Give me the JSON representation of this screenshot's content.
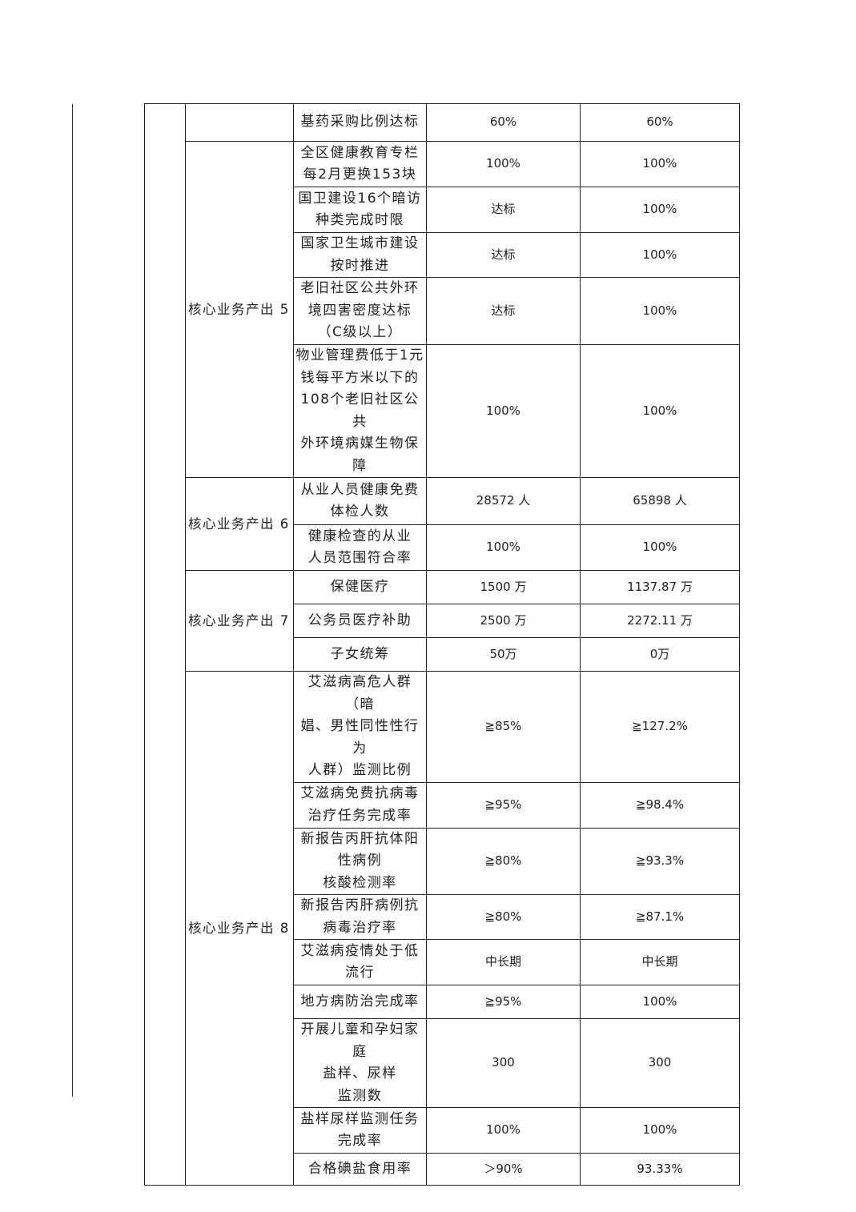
{
  "groups": [
    {
      "label": "",
      "rows": [
        0
      ]
    },
    {
      "label": "核心业务产出 5",
      "rows": [
        1,
        2,
        3,
        4,
        5
      ]
    },
    {
      "label": "核心业务产出 6",
      "rows": [
        6,
        7
      ]
    },
    {
      "label": "核心业务产出 7",
      "rows": [
        8,
        9,
        10
      ]
    },
    {
      "label": "核心业务产出 8",
      "rows": [
        11,
        12,
        13,
        14,
        15,
        16,
        17,
        18,
        19
      ]
    }
  ],
  "rows": [
    {
      "indicator": "基药采购比例达标",
      "target": "60%",
      "actual": "60%"
    },
    {
      "indicator": "全区健康教育专栏\n每2月更换153块",
      "target": "100%",
      "actual": "100%"
    },
    {
      "indicator": "国卫建设16个暗访\n种类完成时限",
      "target": "达标",
      "actual": "100%"
    },
    {
      "indicator": "国家卫生城市建设\n按时推进",
      "target": "达标",
      "actual": "100%"
    },
    {
      "indicator": "老旧社区公共外环\n境四害密度达标\n（C级以上）",
      "target": "达标",
      "actual": "100%"
    },
    {
      "indicator": "物业管理费低于1元\n钱每平方米以下的\n108个老旧社区公共\n外环境病媒生物保\n障",
      "target": "100%",
      "actual": "100%"
    },
    {
      "indicator": "从业人员健康免费\n体检人数",
      "target": "28572 人",
      "actual": "65898 人"
    },
    {
      "indicator": "健康检查的从业\n人员范围符合率",
      "target": "100%",
      "actual": "100%"
    },
    {
      "indicator": "保健医疗",
      "target": "1500 万",
      "actual": "1137.87 万"
    },
    {
      "indicator": "公务员医疗补助",
      "target": "2500 万",
      "actual": "2272.11 万"
    },
    {
      "indicator": "子女统筹",
      "target": "50万",
      "actual": "0万"
    },
    {
      "indicator": "艾滋病高危人群（暗\n娼、男性同性性行为\n人群）监测比例",
      "target": "≧85%",
      "actual": "≧127.2%"
    },
    {
      "indicator": "艾滋病免费抗病毒\n治疗任务完成率",
      "target": "≧95%",
      "actual": "≧98.4%"
    },
    {
      "indicator": "新报告丙肝抗体阳\n性病例\n核酸检测率",
      "target": "≧80%",
      "actual": "≧93.3%"
    },
    {
      "indicator": "新报告丙肝病例抗\n病毒治疗率",
      "target": "≧80%",
      "actual": "≧87.1%"
    },
    {
      "indicator": "艾滋病疫情处于低\n流行",
      "target": "中长期",
      "actual": "中长期"
    },
    {
      "indicator": "地方病防治完成率",
      "target": "≧95%",
      "actual": "100%"
    },
    {
      "indicator": "开展儿童和孕妇家庭\n盐样、尿样\n监测数",
      "target": "300",
      "actual": "300"
    },
    {
      "indicator": "盐样尿样监测任务\n完成率",
      "target": "100%",
      "actual": "100%"
    },
    {
      "indicator": "合格碘盐食用率",
      "target": "＞90%",
      "actual": "93.33%"
    }
  ]
}
